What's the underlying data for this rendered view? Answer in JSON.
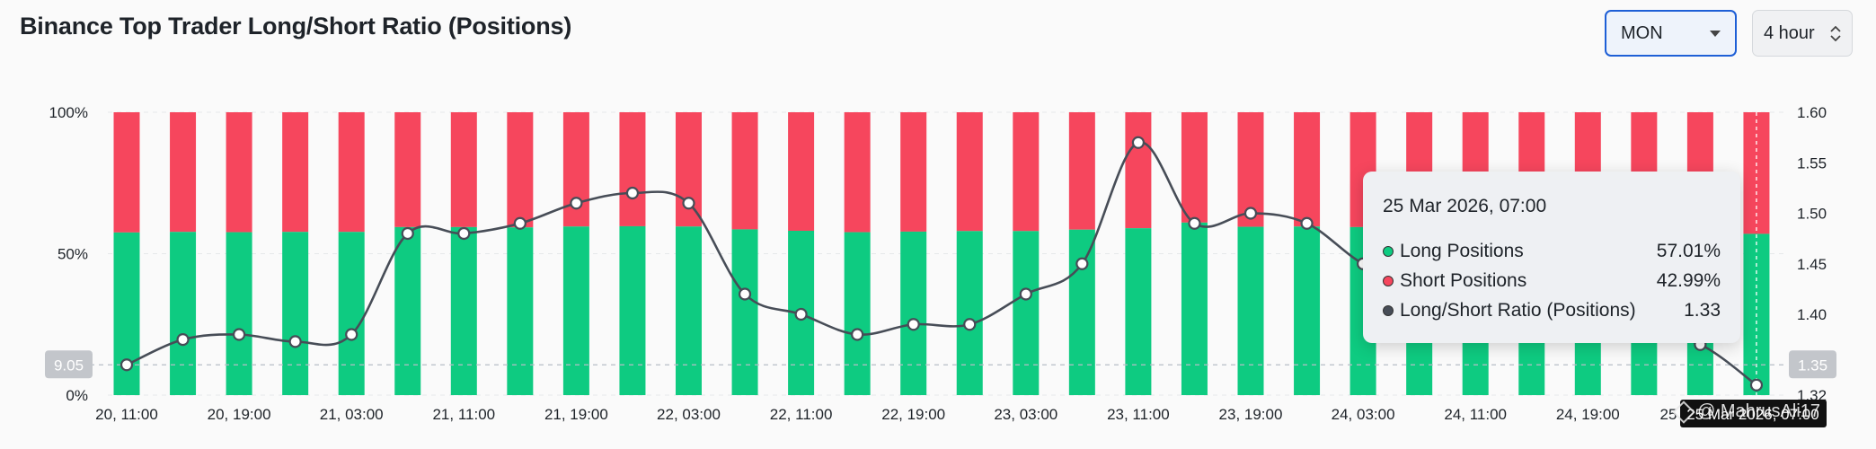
{
  "header": {
    "title": "Binance Top Trader Long/Short Ratio (Positions)",
    "symbol_select": "MON",
    "interval_select": "4 hour"
  },
  "tooltip": {
    "date": "25 Mar 2026, 07:00",
    "rows": [
      {
        "label": "Long Positions",
        "value": "57.01%",
        "color": "#0ecb81"
      },
      {
        "label": "Short Positions",
        "value": "42.99%",
        "color": "#f6465d"
      },
      {
        "label": "Long/Short Ratio (Positions)",
        "value": "1.33",
        "color": "#474d57"
      }
    ]
  },
  "watermark": "@ MahrusAli17",
  "chart_data": {
    "type": "bar",
    "x_tick_labels": [
      "20, 11:00",
      "20, 19:00",
      "21, 03:00",
      "21, 11:00",
      "21, 19:00",
      "22, 03:00",
      "22, 11:00",
      "22, 19:00",
      "23, 03:00",
      "23, 11:00",
      "23, 19:00",
      "24, 03:00",
      "24, 11:00",
      "24, 19:00",
      "25"
    ],
    "left_axis": {
      "ticks": [
        "100%",
        "50%",
        "0%"
      ],
      "ylim": [
        0,
        100
      ]
    },
    "right_axis": {
      "ticks": [
        "1.60",
        "1.55",
        "1.50",
        "1.45",
        "1.40",
        "1.35",
        "1.32"
      ],
      "ylim": [
        1.32,
        1.6
      ]
    },
    "left_crosshair_label": "9.05",
    "right_crosshair_label": "1.35",
    "crosshair_x_label": "25 Mar 2026, 07:00",
    "series": [
      {
        "name": "Long Positions",
        "color": "#0ecb81",
        "values": [
          57.5,
          57.7,
          57.6,
          57.7,
          57.7,
          59.4,
          59.4,
          59.3,
          59.6,
          59.7,
          59.6,
          58.6,
          58.1,
          57.6,
          57.8,
          58.0,
          58.0,
          58.5,
          59.0,
          61.0,
          59.5,
          59.6,
          59.4,
          58.4,
          57.8,
          57.5,
          57.4,
          57.3,
          57.3,
          57.01
        ]
      },
      {
        "name": "Short Positions",
        "color": "#f6465d",
        "values": [
          42.5,
          42.3,
          42.4,
          42.3,
          42.3,
          40.6,
          40.6,
          40.7,
          40.4,
          40.3,
          40.4,
          41.4,
          41.9,
          42.4,
          42.2,
          42.0,
          42.0,
          41.5,
          41.0,
          39.0,
          40.5,
          40.4,
          40.6,
          41.6,
          42.2,
          42.5,
          42.6,
          42.7,
          42.7,
          42.99
        ]
      },
      {
        "name": "Long/Short Ratio (Positions)",
        "color": "#474d57",
        "axis": "right",
        "values": [
          1.35,
          1.375,
          1.38,
          1.373,
          1.38,
          1.48,
          1.48,
          1.49,
          1.51,
          1.52,
          1.51,
          1.42,
          1.4,
          1.38,
          1.39,
          1.39,
          1.42,
          1.45,
          1.57,
          1.49,
          1.5,
          1.49,
          1.45,
          1.43,
          1.42,
          1.4,
          1.39,
          1.38,
          1.37,
          1.33
        ]
      }
    ]
  }
}
